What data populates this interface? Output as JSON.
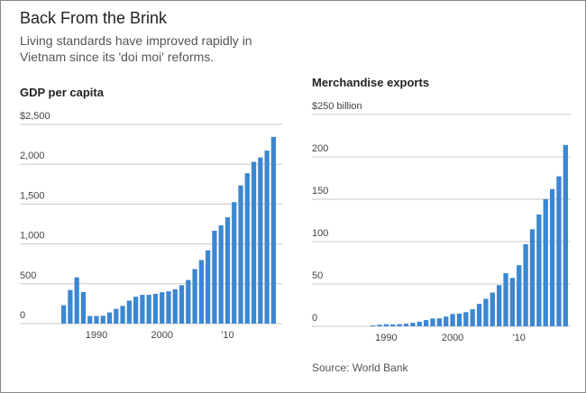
{
  "header": {
    "title": "Back From the Brink",
    "subtitle": "Living standards have improved rapidly in Vietnam since its 'doi moi' reforms."
  },
  "source": "Source: World Bank",
  "chart_data": [
    {
      "type": "bar",
      "title": "GDP per capita",
      "color": "#3b87d1",
      "categories": [
        null,
        null,
        null,
        null,
        null,
        "1990",
        null,
        null,
        null,
        null,
        null,
        null,
        null,
        null,
        null,
        "2000",
        null,
        null,
        null,
        null,
        null,
        null,
        null,
        null,
        null,
        "'10",
        null,
        null,
        null,
        null,
        null,
        null,
        null
      ],
      "values": [
        231,
        422,
        580,
        395,
        95,
        95,
        98,
        140,
        185,
        222,
        288,
        337,
        361,
        361,
        374,
        394,
        405,
        430,
        482,
        547,
        684,
        797,
        919,
        1165,
        1232,
        1334,
        1525,
        1735,
        1887,
        2030,
        2085,
        2171,
        2343
      ],
      "ylim": [
        0,
        2500
      ],
      "yticks": [
        {
          "value": 2500,
          "label": "$2,500"
        },
        {
          "value": 2000,
          "label": "2,000"
        },
        {
          "value": 1500,
          "label": "1,500"
        },
        {
          "value": 1000,
          "label": "1,000"
        },
        500,
        0
      ],
      "grid": true
    },
    {
      "type": "bar",
      "title": "Merchandise exports",
      "color": "#3b87d1",
      "categories": [
        null,
        null,
        "1990",
        null,
        null,
        null,
        null,
        null,
        null,
        null,
        null,
        null,
        "2000",
        null,
        null,
        null,
        null,
        null,
        null,
        null,
        null,
        null,
        "'10",
        null,
        null,
        null,
        null,
        null,
        null,
        null
      ],
      "values": [
        1.0,
        1.9,
        2.4,
        2.1,
        2.5,
        3.0,
        4.1,
        5.4,
        7.3,
        9.2,
        9.4,
        11.5,
        14.5,
        15.0,
        16.7,
        20.1,
        26.5,
        32.4,
        39.8,
        48.6,
        62.7,
        57.1,
        72.2,
        96.9,
        114.5,
        132,
        150,
        162,
        177,
        214
      ],
      "ylim": [
        0,
        250
      ],
      "yticks": [
        {
          "value": 250,
          "label": "$250 billion"
        },
        200,
        150,
        100,
        50,
        0
      ],
      "grid": true
    }
  ]
}
